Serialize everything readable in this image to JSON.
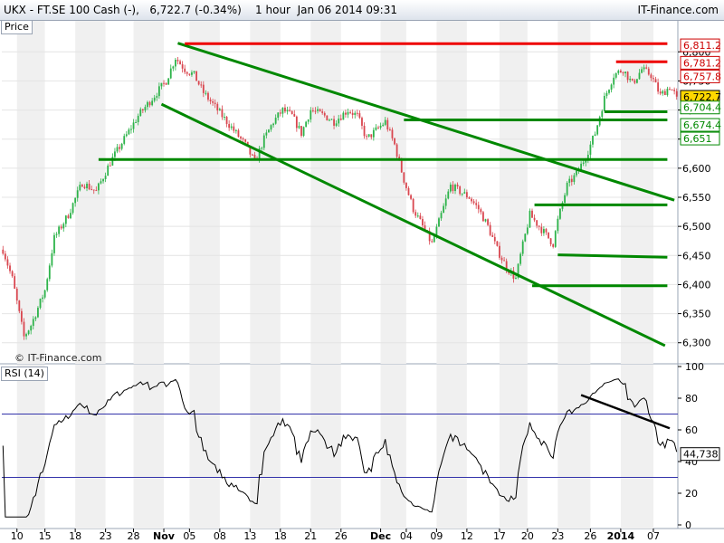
{
  "header": {
    "instrument": "UKX - FT.SE 100 Cash (-)",
    "last": "6,722.7 (-0.34%)",
    "interval": "1 hour",
    "datetime": "Jan 06 2014 09:31",
    "brand": "IT-Finance.com"
  },
  "watermark": "© IT-Finance.com",
  "chart_data": [
    {
      "type": "candlestick",
      "panel_label": "Price",
      "ylim": [
        6270,
        6830
      ],
      "y_ticks": [
        6300,
        6350,
        6400,
        6450,
        6500,
        6550,
        6600,
        6650,
        6700,
        6750,
        6800
      ],
      "y_tick_labels": [
        "6,300",
        "6,350",
        "6,400",
        "6,450",
        "6,500",
        "6,550",
        "6,600",
        "6,650",
        "6,700",
        "6,750",
        "6,800"
      ],
      "price_path": [
        {
          "t": 0,
          "v": 6460
        },
        {
          "t": 4,
          "v": 6410
        },
        {
          "t": 7,
          "v": 6350
        },
        {
          "t": 9,
          "v": 6310
        },
        {
          "t": 12,
          "v": 6330
        },
        {
          "t": 18,
          "v": 6390
        },
        {
          "t": 22,
          "v": 6480
        },
        {
          "t": 28,
          "v": 6520
        },
        {
          "t": 34,
          "v": 6575
        },
        {
          "t": 40,
          "v": 6560
        },
        {
          "t": 46,
          "v": 6610
        },
        {
          "t": 52,
          "v": 6650
        },
        {
          "t": 58,
          "v": 6690
        },
        {
          "t": 64,
          "v": 6720
        },
        {
          "t": 70,
          "v": 6750
        },
        {
          "t": 74,
          "v": 6790
        },
        {
          "t": 78,
          "v": 6770
        },
        {
          "t": 82,
          "v": 6760
        },
        {
          "t": 86,
          "v": 6730
        },
        {
          "t": 92,
          "v": 6700
        },
        {
          "t": 96,
          "v": 6680
        },
        {
          "t": 100,
          "v": 6660
        },
        {
          "t": 104,
          "v": 6640
        },
        {
          "t": 108,
          "v": 6610
        },
        {
          "t": 112,
          "v": 6650
        },
        {
          "t": 116,
          "v": 6680
        },
        {
          "t": 120,
          "v": 6700
        },
        {
          "t": 124,
          "v": 6690
        },
        {
          "t": 128,
          "v": 6660
        },
        {
          "t": 132,
          "v": 6700
        },
        {
          "t": 138,
          "v": 6690
        },
        {
          "t": 142,
          "v": 6680
        },
        {
          "t": 148,
          "v": 6700
        },
        {
          "t": 152,
          "v": 6690
        },
        {
          "t": 156,
          "v": 6650
        },
        {
          "t": 160,
          "v": 6665
        },
        {
          "t": 164,
          "v": 6680
        },
        {
          "t": 168,
          "v": 6640
        },
        {
          "t": 172,
          "v": 6580
        },
        {
          "t": 176,
          "v": 6530
        },
        {
          "t": 180,
          "v": 6500
        },
        {
          "t": 184,
          "v": 6470
        },
        {
          "t": 188,
          "v": 6520
        },
        {
          "t": 192,
          "v": 6570
        },
        {
          "t": 196,
          "v": 6560
        },
        {
          "t": 200,
          "v": 6550
        },
        {
          "t": 204,
          "v": 6530
        },
        {
          "t": 208,
          "v": 6500
        },
        {
          "t": 212,
          "v": 6460
        },
        {
          "t": 216,
          "v": 6430
        },
        {
          "t": 220,
          "v": 6410
        },
        {
          "t": 222,
          "v": 6450
        },
        {
          "t": 226,
          "v": 6520
        },
        {
          "t": 230,
          "v": 6500
        },
        {
          "t": 234,
          "v": 6480
        },
        {
          "t": 236,
          "v": 6470
        },
        {
          "t": 238,
          "v": 6510
        },
        {
          "t": 242,
          "v": 6570
        },
        {
          "t": 246,
          "v": 6590
        },
        {
          "t": 250,
          "v": 6620
        },
        {
          "t": 254,
          "v": 6660
        },
        {
          "t": 258,
          "v": 6720
        },
        {
          "t": 262,
          "v": 6760
        },
        {
          "t": 266,
          "v": 6770
        },
        {
          "t": 270,
          "v": 6745
        },
        {
          "t": 274,
          "v": 6770
        },
        {
          "t": 278,
          "v": 6760
        },
        {
          "t": 282,
          "v": 6725
        },
        {
          "t": 286,
          "v": 6740
        },
        {
          "t": 289,
          "v": 6723
        }
      ],
      "trendlines": [
        {
          "from": [
            75,
            6815
          ],
          "to": [
            288,
            6545
          ],
          "color": "#008800"
        },
        {
          "from": [
            68,
            6710
          ],
          "to": [
            284,
            6295
          ],
          "color": "#008800"
        },
        {
          "from": [
            78,
            6814
          ],
          "to": [
            285,
            6814
          ],
          "color": "#ee0000"
        },
        {
          "from": [
            263,
            6783
          ],
          "to": [
            285,
            6783
          ],
          "color": "#ee0000"
        },
        {
          "from": [
            41,
            6615
          ],
          "to": [
            285,
            6615
          ],
          "color": "#008800"
        },
        {
          "from": [
            172,
            6683
          ],
          "to": [
            285,
            6683
          ],
          "color": "#008800"
        },
        {
          "from": [
            258,
            6697
          ],
          "to": [
            285,
            6697
          ],
          "color": "#008800"
        },
        {
          "from": [
            228,
            6537
          ],
          "to": [
            285,
            6537
          ],
          "color": "#008800"
        },
        {
          "from": [
            238,
            6451
          ],
          "to": [
            285,
            6447
          ],
          "color": "#008800"
        },
        {
          "from": [
            227,
            6398
          ],
          "to": [
            285,
            6398
          ],
          "color": "#008800"
        }
      ],
      "level_labels": [
        {
          "value": 6811.2,
          "text": "6,811.2",
          "color": "#cc0000",
          "bg": "#ffffff"
        },
        {
          "value": 6781.2,
          "text": "6,781.2",
          "color": "#cc0000",
          "bg": "#ffffff"
        },
        {
          "value": 6757.8,
          "text": "6,757.8",
          "color": "#cc0000",
          "bg": "#ffffff"
        },
        {
          "value": 6722.7,
          "text": "6,722.7",
          "color": "#000000",
          "bg": "#ffd800"
        },
        {
          "value": 6704.4,
          "text": "6,704.4",
          "color": "#008800",
          "bg": "#ffffff"
        },
        {
          "value": 6674.4,
          "text": "6,674.4",
          "color": "#008800",
          "bg": "#ffffff"
        },
        {
          "value": 6651,
          "text": "6,651",
          "color": "#008800",
          "bg": "#ffffff"
        }
      ],
      "candle_colors": {
        "up": "#2db34a",
        "down": "#d9464f"
      }
    },
    {
      "type": "line",
      "panel_label": "RSI (14)",
      "ylim": [
        0,
        100
      ],
      "y_ticks": [
        0,
        20,
        40,
        60,
        80,
        100
      ],
      "bands": [
        30,
        70
      ],
      "band_color": "#3333aa",
      "last_value": "44,738",
      "line_color": "#000000",
      "trendline": {
        "from": [
          248,
          82
        ],
        "to": [
          286,
          61
        ],
        "color": "#000000"
      }
    }
  ],
  "x_axis": {
    "bars_total": 290,
    "ticks": [
      {
        "t": 6,
        "label": "10",
        "major": false
      },
      {
        "t": 18,
        "label": "15",
        "major": false
      },
      {
        "t": 31,
        "label": "18",
        "major": false
      },
      {
        "t": 44,
        "label": "23",
        "major": false
      },
      {
        "t": 56,
        "label": "28",
        "major": false
      },
      {
        "t": 69,
        "label": "Nov",
        "major": true
      },
      {
        "t": 80,
        "label": "05",
        "major": false
      },
      {
        "t": 93,
        "label": "08",
        "major": false
      },
      {
        "t": 106,
        "label": "13",
        "major": false
      },
      {
        "t": 119,
        "label": "18",
        "major": false
      },
      {
        "t": 132,
        "label": "21",
        "major": false
      },
      {
        "t": 145,
        "label": "26",
        "major": false
      },
      {
        "t": 162,
        "label": "Dec",
        "major": true
      },
      {
        "t": 173,
        "label": "04",
        "major": false
      },
      {
        "t": 186,
        "label": "09",
        "major": false
      },
      {
        "t": 199,
        "label": "12",
        "major": false
      },
      {
        "t": 213,
        "label": "17",
        "major": false
      },
      {
        "t": 225,
        "label": "20",
        "major": false
      },
      {
        "t": 238,
        "label": "23",
        "major": false
      },
      {
        "t": 252,
        "label": "26",
        "major": false
      },
      {
        "t": 265,
        "label": "2014",
        "major": true
      },
      {
        "t": 279,
        "label": "07",
        "major": false
      }
    ]
  }
}
